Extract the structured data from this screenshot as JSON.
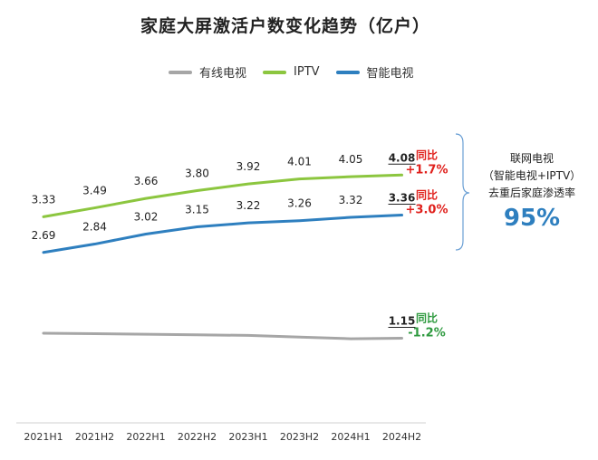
{
  "chart_data": {
    "type": "line",
    "title": "家庭大屏激活户数变化趋势（亿户）",
    "categories": [
      "2021H1",
      "2021H2",
      "2022H1",
      "2022H2",
      "2023H1",
      "2023H2",
      "2024H1",
      "2024H2"
    ],
    "series": [
      {
        "name": "有线电视",
        "color": "#a6a6a6",
        "values": [
          1.24,
          1.23,
          1.22,
          1.21,
          1.2,
          1.17,
          1.14,
          1.15
        ],
        "labels": [
          null,
          null,
          null,
          null,
          null,
          null,
          null,
          "1.15"
        ],
        "yoy_label": "同比",
        "yoy_value": "-1.2%",
        "yoy_color": "#2e9a3f"
      },
      {
        "name": "IPTV",
        "color": "#8cc63f",
        "values": [
          3.33,
          3.49,
          3.66,
          3.8,
          3.92,
          4.01,
          4.05,
          4.08
        ],
        "labels": [
          "3.33",
          "3.49",
          "3.66",
          "3.80",
          "3.92",
          "4.01",
          "4.05",
          "4.08"
        ],
        "yoy_label": "同比",
        "yoy_value": "+1.7%",
        "yoy_color": "#e0201c"
      },
      {
        "name": "智能电视",
        "color": "#2e7fbf",
        "values": [
          2.69,
          2.84,
          3.02,
          3.15,
          3.22,
          3.26,
          3.32,
          3.36
        ],
        "labels": [
          "2.69",
          "2.84",
          "3.02",
          "3.15",
          "3.22",
          "3.26",
          "3.32",
          "3.36"
        ],
        "yoy_label": "同比",
        "yoy_value": "+3.0%",
        "yoy_color": "#e0201c"
      }
    ],
    "ylim": [
      0.8,
      4.8
    ],
    "grid": false,
    "legend_position": "top-center",
    "annotation": {
      "line1": "联网电视",
      "line2": "（智能电视+IPTV）",
      "line3": "去重后家庭渗透率",
      "value": "95%",
      "value_color": "#2e7fbf"
    }
  }
}
